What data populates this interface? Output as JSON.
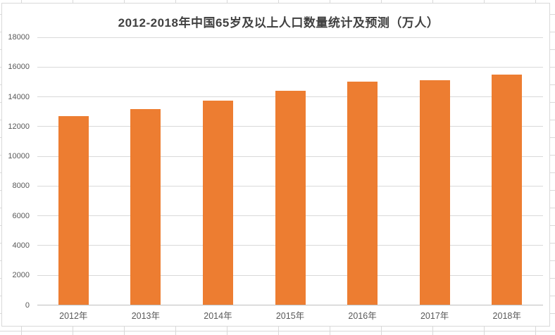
{
  "chart": {
    "title": "2012-2018年中国65岁及以上人口数量统计及预测（万人）"
  },
  "chart_data": {
    "type": "bar",
    "title": "2012-2018年中国65岁及以上人口数量统计及预测（万人）",
    "categories": [
      "2012年",
      "2013年",
      "2014年",
      "2015年",
      "2016年",
      "2017年",
      "2018年"
    ],
    "values": [
      12714,
      13161,
      13755,
      14386,
      15003,
      15100,
      15500
    ],
    "unit": "万人",
    "xlabel": "",
    "ylabel": "",
    "ylim": [
      0,
      18000
    ],
    "yticks": [
      0,
      2000,
      4000,
      6000,
      8000,
      10000,
      12000,
      14000,
      16000,
      18000
    ],
    "grid": "horizontal",
    "legend_position": "none",
    "bar_color": "#ED7D31"
  },
  "colors": {
    "bar": "#ED7D31",
    "plot_gridline": "#D9D9D9",
    "axis_line": "#BFBFBF",
    "tick_text": "#595959",
    "title_text": "#404040",
    "chart_border": "#D9D9D9",
    "sheet_gridline": "#D9D9D9",
    "background": "#FFFFFF"
  }
}
